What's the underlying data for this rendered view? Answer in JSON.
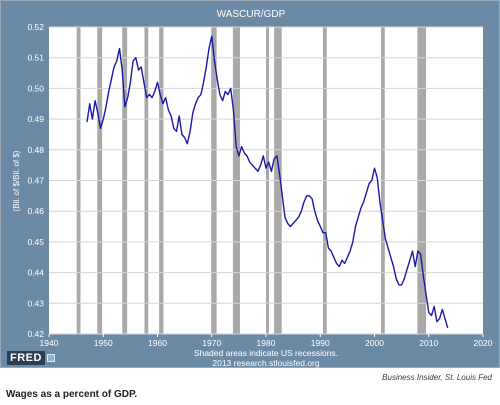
{
  "caption": "Wages as a percent of GDP.",
  "source_credit": "Business Insider, St. Louis Fed",
  "logo_text": "FRED",
  "colors": {
    "frame": "#6b8aa6",
    "plot_bg": "#ffffff",
    "recession": "#a9a9a9",
    "line": "#1a1aa6",
    "text_light": "#ffffff"
  },
  "chart_data": {
    "type": "line",
    "title": "WASCUR/GDP",
    "xlabel": "",
    "ylabel": "(Bil. of $/Bil. of $)",
    "footnote_1": "Shaded areas indicate US recessions.",
    "footnote_2": "2013 research.stlouisfed.org",
    "xlim": [
      1940,
      2020
    ],
    "ylim": [
      0.42,
      0.52
    ],
    "x_ticks": [
      1940,
      1950,
      1960,
      1970,
      1980,
      1990,
      2000,
      2010,
      2020
    ],
    "y_ticks": [
      0.42,
      0.43,
      0.44,
      0.45,
      0.46,
      0.47,
      0.48,
      0.49,
      0.5,
      0.51,
      0.52
    ],
    "x_tick_labels": [
      "1940",
      "1950",
      "1960",
      "1970",
      "1980",
      "1990",
      "2000",
      "2010",
      "2020"
    ],
    "y_tick_labels": [
      "0.42",
      "0.43",
      "0.44",
      "0.45",
      "0.46",
      "0.47",
      "0.48",
      "0.49",
      "0.50",
      "0.51",
      "0.52"
    ],
    "grid": "horizontal",
    "recessions": [
      [
        1945.1,
        1945.8
      ],
      [
        1948.9,
        1949.8
      ],
      [
        1953.5,
        1954.4
      ],
      [
        1957.6,
        1958.3
      ],
      [
        1960.3,
        1961.1
      ],
      [
        1969.9,
        1970.9
      ],
      [
        1973.9,
        1975.2
      ],
      [
        1980.0,
        1980.5
      ],
      [
        1981.5,
        1982.9
      ],
      [
        1990.5,
        1991.2
      ],
      [
        2001.2,
        2001.9
      ],
      [
        2007.9,
        2009.5
      ]
    ],
    "series": [
      {
        "name": "",
        "x": [
          1947.0,
          1947.5,
          1948.0,
          1948.5,
          1949.0,
          1949.5,
          1950.0,
          1950.5,
          1951.0,
          1951.5,
          1952.0,
          1952.5,
          1953.0,
          1953.5,
          1954.0,
          1954.5,
          1955.0,
          1955.5,
          1956.0,
          1956.5,
          1957.0,
          1957.5,
          1958.0,
          1958.5,
          1959.0,
          1959.5,
          1960.0,
          1960.5,
          1961.0,
          1961.5,
          1962.0,
          1962.5,
          1963.0,
          1963.5,
          1964.0,
          1964.5,
          1965.0,
          1965.5,
          1966.0,
          1966.5,
          1967.0,
          1967.5,
          1968.0,
          1968.5,
          1969.0,
          1969.5,
          1970.0,
          1970.5,
          1971.0,
          1971.5,
          1972.0,
          1972.5,
          1973.0,
          1973.5,
          1974.0,
          1974.5,
          1975.0,
          1975.5,
          1976.0,
          1976.5,
          1977.0,
          1977.5,
          1978.0,
          1978.5,
          1979.0,
          1979.5,
          1980.0,
          1980.5,
          1981.0,
          1981.5,
          1982.0,
          1982.5,
          1983.0,
          1983.5,
          1984.0,
          1984.5,
          1985.0,
          1985.5,
          1986.0,
          1986.5,
          1987.0,
          1987.5,
          1988.0,
          1988.5,
          1989.0,
          1989.5,
          1990.0,
          1990.5,
          1991.0,
          1991.5,
          1992.0,
          1992.5,
          1993.0,
          1993.5,
          1994.0,
          1994.5,
          1995.0,
          1995.5,
          1996.0,
          1996.5,
          1997.0,
          1997.5,
          1998.0,
          1998.5,
          1999.0,
          1999.5,
          2000.0,
          2000.5,
          2001.0,
          2001.5,
          2002.0,
          2002.5,
          2003.0,
          2003.5,
          2004.0,
          2004.5,
          2005.0,
          2005.5,
          2006.0,
          2006.5,
          2007.0,
          2007.5,
          2008.0,
          2008.5,
          2009.0,
          2009.5,
          2010.0,
          2010.5,
          2011.0,
          2011.5,
          2012.0,
          2012.5,
          2013.0,
          2013.5
        ],
        "y": [
          0.489,
          0.495,
          0.49,
          0.496,
          0.492,
          0.487,
          0.49,
          0.494,
          0.499,
          0.503,
          0.507,
          0.509,
          0.513,
          0.506,
          0.494,
          0.497,
          0.502,
          0.509,
          0.51,
          0.506,
          0.507,
          0.502,
          0.497,
          0.498,
          0.497,
          0.499,
          0.502,
          0.498,
          0.495,
          0.497,
          0.493,
          0.491,
          0.487,
          0.486,
          0.491,
          0.485,
          0.484,
          0.482,
          0.486,
          0.492,
          0.495,
          0.497,
          0.498,
          0.502,
          0.507,
          0.513,
          0.517,
          0.509,
          0.503,
          0.498,
          0.496,
          0.499,
          0.498,
          0.5,
          0.493,
          0.481,
          0.478,
          0.481,
          0.479,
          0.478,
          0.476,
          0.475,
          0.474,
          0.473,
          0.475,
          0.478,
          0.474,
          0.476,
          0.473,
          0.477,
          0.478,
          0.472,
          0.465,
          0.458,
          0.456,
          0.455,
          0.456,
          0.457,
          0.458,
          0.46,
          0.463,
          0.465,
          0.465,
          0.464,
          0.46,
          0.457,
          0.455,
          0.453,
          0.453,
          0.448,
          0.447,
          0.445,
          0.443,
          0.442,
          0.444,
          0.443,
          0.445,
          0.447,
          0.45,
          0.455,
          0.458,
          0.461,
          0.463,
          0.466,
          0.469,
          0.47,
          0.474,
          0.471,
          0.463,
          0.457,
          0.451,
          0.448,
          0.445,
          0.442,
          0.438,
          0.436,
          0.436,
          0.438,
          0.441,
          0.444,
          0.447,
          0.442,
          0.447,
          0.446,
          0.439,
          0.433,
          0.427,
          0.426,
          0.429,
          0.424,
          0.425,
          0.428,
          0.425,
          0.422
        ]
      }
    ]
  }
}
